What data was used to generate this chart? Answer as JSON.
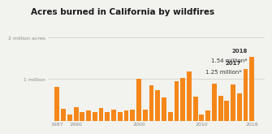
{
  "title": "Acres burned in California by wildfires",
  "title_fontsize": 7.5,
  "background_color": "#f2f2ee",
  "bar_color": "#F5871A",
  "y_tick_labels": [
    "2 million acres",
    "1 million"
  ],
  "y_tick_values": [
    2000000,
    1000000
  ],
  "ylim": [
    0,
    2100000
  ],
  "years": [
    1987,
    1988,
    1989,
    1990,
    1991,
    1992,
    1993,
    1994,
    1995,
    1996,
    1997,
    1998,
    1999,
    2000,
    2001,
    2002,
    2003,
    2004,
    2005,
    2006,
    2007,
    2008,
    2009,
    2010,
    2011,
    2012,
    2013,
    2014,
    2015,
    2016,
    2017,
    2018
  ],
  "values": [
    820000,
    280000,
    150000,
    330000,
    200000,
    250000,
    200000,
    310000,
    200000,
    270000,
    210000,
    240000,
    270000,
    1000000,
    260000,
    860000,
    740000,
    560000,
    210000,
    950000,
    1020000,
    1180000,
    580000,
    150000,
    240000,
    890000,
    590000,
    490000,
    870000,
    660000,
    1250000,
    1540000
  ],
  "annot_fontsize": 5.0,
  "annot_color": "#333333",
  "grid_color": "#cccccc",
  "xtick_labels": [
    "1987",
    "1990",
    "2000",
    "2010",
    "2018"
  ],
  "xtick_positions": [
    1987,
    1990,
    2000,
    2010,
    2018
  ]
}
